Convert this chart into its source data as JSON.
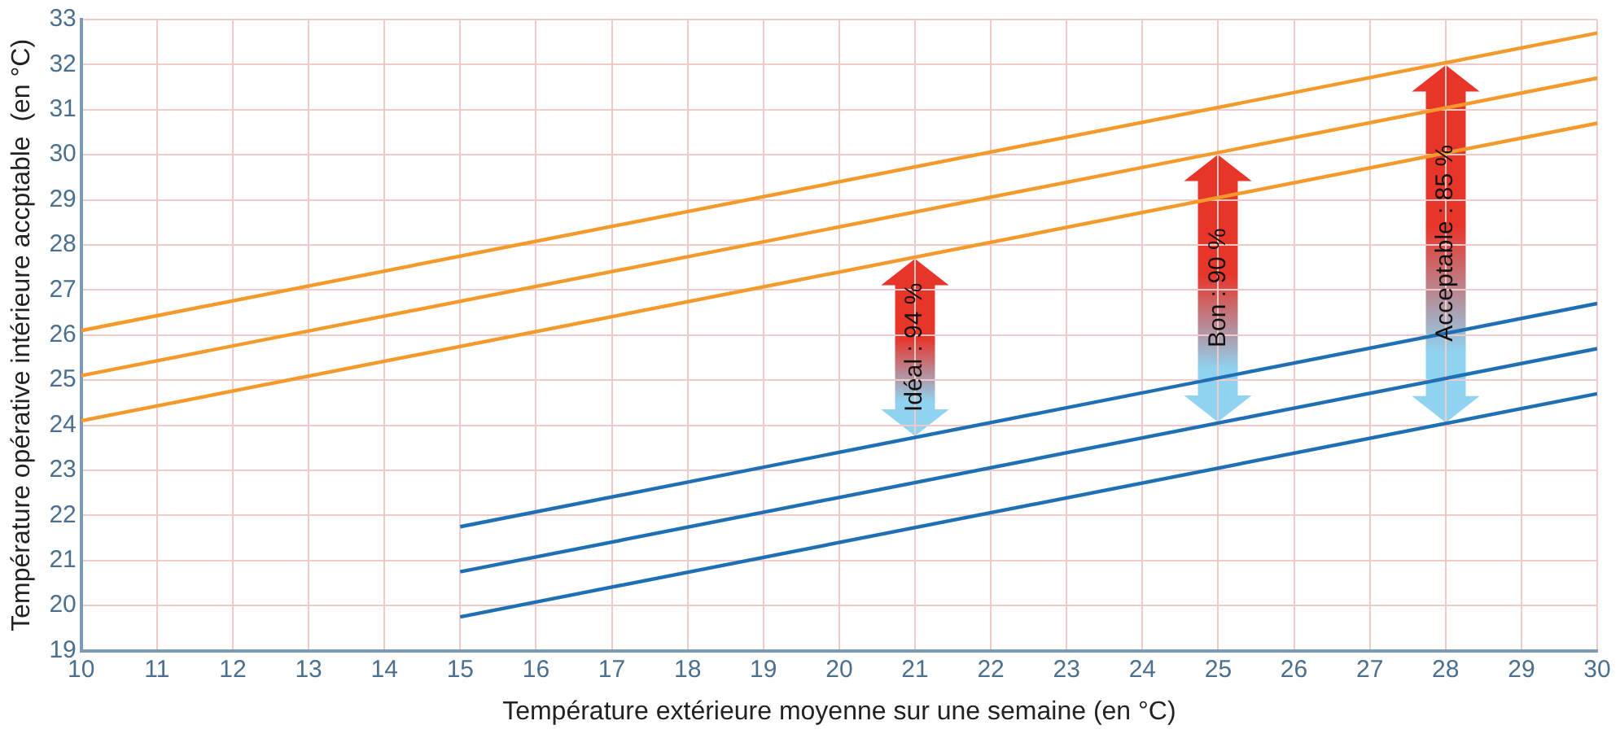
{
  "chart_data": {
    "type": "line",
    "xlabel": "Température extérieure moyenne sur une semaine (en °C)",
    "ylabel": "Température opérative intérieure accptable  (en °C)",
    "xlim": [
      10,
      30
    ],
    "xticks": [
      10,
      11,
      12,
      13,
      14,
      15,
      16,
      17,
      18,
      19,
      20,
      21,
      22,
      23,
      24,
      25,
      26,
      27,
      28,
      29,
      30
    ],
    "ylim": [
      19,
      33
    ],
    "yticks": [
      19,
      20,
      21,
      22,
      23,
      24,
      25,
      26,
      27,
      28,
      29,
      30,
      31,
      32,
      33
    ],
    "grid": true,
    "legend": false,
    "marker": "none",
    "line_style": "solid",
    "series": [
      {
        "color": "#f39a2b",
        "x": [
          10,
          30
        ],
        "values": [
          26.1,
          32.7
        ]
      },
      {
        "color": "#f39a2b",
        "x": [
          10,
          30
        ],
        "values": [
          25.1,
          31.7
        ]
      },
      {
        "color": "#f39a2b",
        "x": [
          10,
          30
        ],
        "values": [
          24.1,
          30.7
        ]
      },
      {
        "color": "#1f6fb5",
        "x": [
          15,
          30
        ],
        "values": [
          21.75,
          26.7
        ]
      },
      {
        "color": "#1f6fb5",
        "x": [
          15,
          30
        ],
        "values": [
          20.75,
          25.7
        ]
      },
      {
        "color": "#1f6fb5",
        "x": [
          15,
          30
        ],
        "values": [
          19.75,
          24.7
        ]
      }
    ],
    "annotations": [
      "Idéal : 94 %",
      "Bon : 90 %",
      "Acceptable : 85 %"
    ]
  }
}
